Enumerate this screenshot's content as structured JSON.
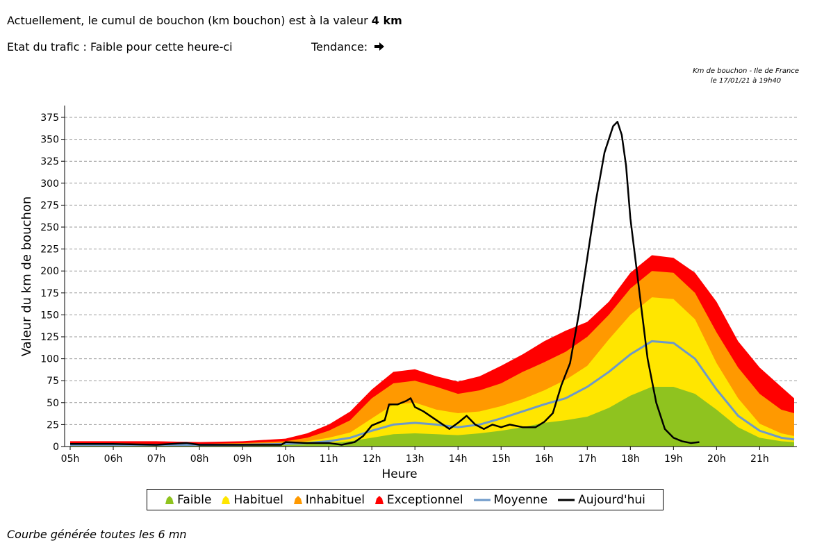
{
  "header": {
    "line1_prefix": "Actuellement, le cumul de bouchon (km bouchon) est à la valeur ",
    "line1_value": "4 km",
    "state_text": "Etat du trafic : Faible pour cette heure-ci",
    "trend_label": "Tendance:",
    "trend_icon": "arrow-right-icon"
  },
  "stamp": {
    "line1": "Km de bouchon - Ile de France",
    "line2": "le 17/01/21 à 19h40"
  },
  "footer": {
    "text": "Courbe générée toutes les 6 mn"
  },
  "chart_data": {
    "type": "area",
    "title": "Km de bouchon - Ile de France",
    "xlabel": "Heure",
    "ylabel": "Valeur du  km de bouchon",
    "xlim": [
      5,
      21.8
    ],
    "ylim": [
      0,
      375
    ],
    "yticks": [
      0,
      25,
      50,
      75,
      100,
      125,
      150,
      175,
      200,
      225,
      250,
      275,
      300,
      325,
      350,
      375
    ],
    "xticks": [
      5,
      6,
      7,
      8,
      9,
      10,
      11,
      12,
      13,
      14,
      15,
      16,
      17,
      18,
      19,
      20,
      21
    ],
    "xtick_labels": [
      "05h",
      "06h",
      "07h",
      "08h",
      "09h",
      "10h",
      "11h",
      "12h",
      "13h",
      "14h",
      "15h",
      "16h",
      "17h",
      "18h",
      "19h",
      "20h",
      "21h"
    ],
    "grid": "y-dashed",
    "legend_position": "bottom",
    "x": [
      5,
      6,
      7,
      8,
      9,
      10,
      10.5,
      11,
      11.5,
      12,
      12.5,
      13,
      13.5,
      14,
      14.5,
      15,
      15.5,
      16,
      16.5,
      17,
      17.5,
      18,
      18.5,
      19,
      19.5,
      20,
      20.5,
      21,
      21.5,
      21.8
    ],
    "series": [
      {
        "name": "Faible",
        "kind": "band",
        "color": "#8fc31f",
        "values": [
          1,
          1,
          1,
          1,
          1,
          2,
          3,
          4,
          6,
          10,
          14,
          15,
          14,
          13,
          15,
          18,
          22,
          27,
          30,
          34,
          44,
          58,
          68,
          68,
          60,
          42,
          22,
          10,
          6,
          5
        ]
      },
      {
        "name": "Habituel",
        "kind": "band",
        "color": "#ffe600",
        "values": [
          2,
          2,
          2,
          2,
          3,
          4,
          6,
          10,
          16,
          32,
          48,
          50,
          42,
          38,
          40,
          46,
          54,
          64,
          76,
          92,
          122,
          150,
          170,
          168,
          145,
          95,
          55,
          26,
          15,
          12
        ]
      },
      {
        "name": "Inhabituel",
        "kind": "band",
        "color": "#ff9900",
        "values": [
          4,
          4,
          3,
          3,
          4,
          6,
          10,
          18,
          30,
          55,
          72,
          75,
          68,
          60,
          64,
          72,
          85,
          96,
          108,
          125,
          150,
          180,
          200,
          198,
          175,
          130,
          90,
          60,
          42,
          38
        ]
      },
      {
        "name": "Exceptionnel",
        "kind": "band",
        "color": "#ff0000",
        "values": [
          6,
          6,
          6,
          5,
          6,
          9,
          15,
          25,
          40,
          65,
          85,
          88,
          80,
          74,
          80,
          92,
          105,
          120,
          132,
          142,
          165,
          198,
          218,
          215,
          198,
          165,
          120,
          90,
          68,
          55
        ]
      },
      {
        "name": "Moyenne",
        "kind": "line",
        "color": "#6d99c9",
        "values": [
          2,
          2,
          2,
          2,
          2,
          3,
          4,
          6,
          10,
          18,
          25,
          27,
          25,
          22,
          25,
          32,
          40,
          48,
          55,
          68,
          85,
          105,
          120,
          118,
          100,
          65,
          35,
          18,
          10,
          8
        ]
      },
      {
        "name": "Aujourd'hui",
        "kind": "line",
        "color": "#000000",
        "x": [
          5,
          6,
          7,
          7.7,
          8,
          9,
          9.9,
          10,
          10.5,
          11,
          11.3,
          11.6,
          11.8,
          12,
          12.3,
          12.4,
          12.6,
          12.8,
          12.9,
          13,
          13.2,
          13.5,
          13.8,
          14,
          14.2,
          14.4,
          14.6,
          14.8,
          15,
          15.2,
          15.5,
          15.8,
          16,
          16.2,
          16.4,
          16.6,
          16.8,
          17,
          17.2,
          17.4,
          17.6,
          17.7,
          17.8,
          17.9,
          18,
          18.2,
          18.4,
          18.6,
          18.8,
          19,
          19.2,
          19.4,
          19.6
        ],
        "values": [
          3,
          3,
          2,
          4,
          2,
          2,
          2,
          5,
          4,
          4,
          2,
          5,
          12,
          24,
          30,
          48,
          48,
          52,
          55,
          45,
          40,
          30,
          20,
          27,
          35,
          25,
          20,
          25,
          22,
          25,
          22,
          22,
          28,
          38,
          70,
          95,
          150,
          215,
          280,
          335,
          365,
          370,
          355,
          320,
          260,
          180,
          100,
          50,
          20,
          10,
          6,
          4,
          5
        ]
      }
    ]
  },
  "legend": {
    "items": [
      {
        "label": "Faible",
        "color": "#8fc31f",
        "kind": "band"
      },
      {
        "label": "Habituel",
        "color": "#ffe600",
        "kind": "band"
      },
      {
        "label": "Inhabituel",
        "color": "#ff9900",
        "kind": "band"
      },
      {
        "label": "Exceptionnel",
        "color": "#ff0000",
        "kind": "band"
      },
      {
        "label": "Moyenne",
        "color": "#6d99c9",
        "kind": "line"
      },
      {
        "label": "Aujourd'hui",
        "color": "#000000",
        "kind": "line"
      }
    ]
  }
}
